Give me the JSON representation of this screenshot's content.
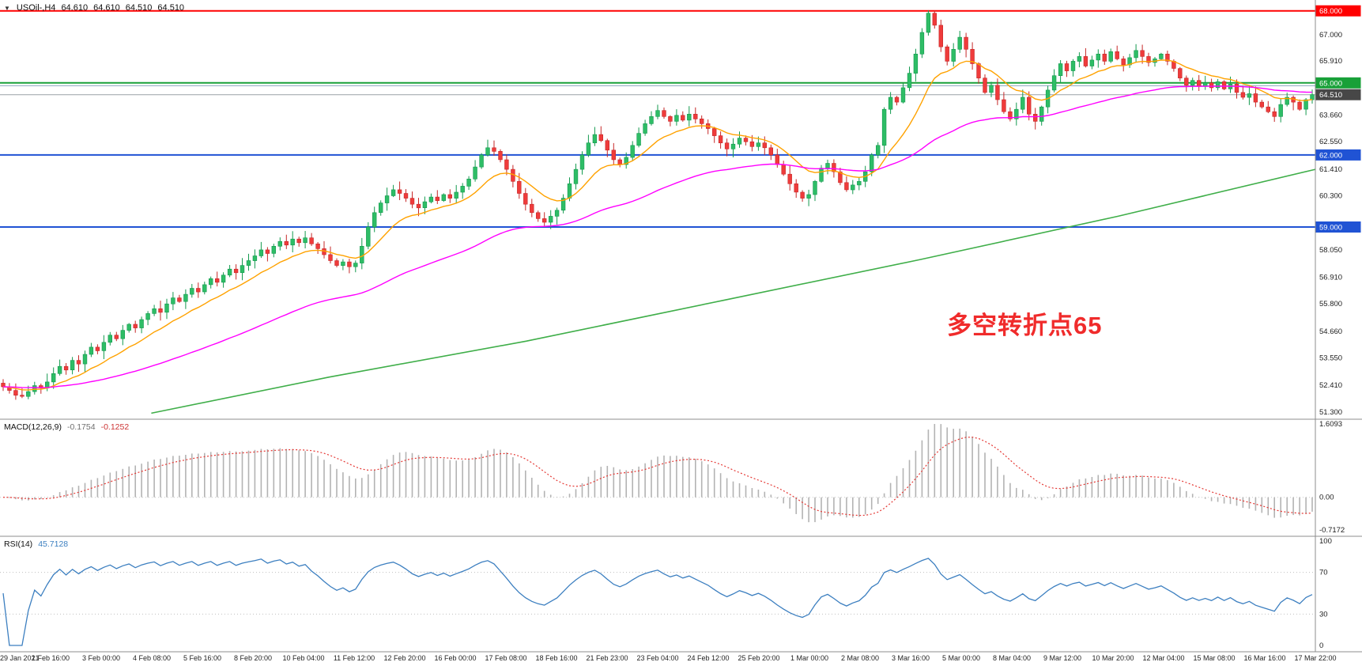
{
  "header": {
    "collapse_icon": "▼",
    "symbol_period": "USOil-,H4",
    "ohlc": {
      "open": "64.610",
      "high": "64.610",
      "low": "64.510",
      "close": "64.510"
    }
  },
  "annotation": {
    "text": "多空转折点65",
    "color": "#f02b2b"
  },
  "time_axis": {
    "labels": [
      "29 Jan 2021",
      "1 Feb 16:00",
      "3 Feb 00:00",
      "4 Feb 08:00",
      "5 Feb 16:00",
      "8 Feb 20:00",
      "10 Feb 04:00",
      "11 Feb 12:00",
      "12 Feb 20:00",
      "16 Feb 00:00",
      "17 Feb 08:00",
      "18 Feb 16:00",
      "21 Feb 23:00",
      "23 Feb 04:00",
      "24 Feb 12:00",
      "25 Feb 20:00",
      "1 Mar 00:00",
      "2 Mar 08:00",
      "3 Mar 16:00",
      "5 Mar 00:00",
      "8 Mar 04:00",
      "9 Mar 12:00",
      "10 Mar 20:00",
      "12 Mar 04:00",
      "15 Mar 08:00",
      "16 Mar 16:00",
      "17 Mar 22:00"
    ]
  },
  "chart_data": [
    {
      "id": "price",
      "type": "candlestick",
      "symbol": "USOil-",
      "period": "H4",
      "ylim": [
        51.0,
        68.45
      ],
      "axis_ticks": [
        "67.000",
        "65.910",
        "63.660",
        "62.550",
        "61.410",
        "60.300",
        "58.050",
        "56.910",
        "55.800",
        "54.660",
        "53.550",
        "52.410",
        "51.300"
      ],
      "up_color": "#2ebd66",
      "up_edge": "#139a4e",
      "down_color": "#ef3b3b",
      "down_edge": "#c62828",
      "hlines": [
        {
          "price": 68.0,
          "label": "68.000",
          "color": "#ff0000",
          "width": 2
        },
        {
          "price": 65.0,
          "label": "65.000",
          "color": "#18a038",
          "width": 2
        },
        {
          "price": 64.88,
          "label": null,
          "color": "#8ca6bf",
          "width": 1
        },
        {
          "price": 62.0,
          "label": "62.000",
          "color": "#2053d4",
          "width": 2
        },
        {
          "price": 59.0,
          "label": "59.000",
          "color": "#2053d4",
          "width": 2
        }
      ],
      "price_marker": {
        "price": 64.51,
        "label": "64.510",
        "line_color": "#9aa0a6",
        "badge_bg": "#474747"
      },
      "moving_averages": [
        {
          "name": "fast-ma",
          "method": "ema",
          "period": 12,
          "color": "#ffa200"
        },
        {
          "name": "mid-ma",
          "method": "ema",
          "period": 55,
          "color": "#ff00ff"
        },
        {
          "name": "long-ma",
          "method": "anchors",
          "color": "#3fae49",
          "points": [
            [
              0.115,
              51.25
            ],
            [
              0.25,
              52.75
            ],
            [
              0.4,
              54.25
            ],
            [
              0.55,
              55.95
            ],
            [
              0.7,
              57.65
            ],
            [
              0.85,
              59.45
            ],
            [
              1.0,
              61.4
            ]
          ]
        }
      ],
      "closes": [
        52.35,
        52.2,
        52.0,
        51.95,
        52.15,
        52.4,
        52.3,
        52.55,
        52.9,
        53.2,
        53.05,
        53.45,
        53.3,
        53.7,
        54.0,
        53.85,
        54.2,
        54.5,
        54.35,
        54.7,
        54.95,
        54.8,
        55.15,
        55.4,
        55.6,
        55.45,
        55.8,
        56.05,
        55.9,
        56.2,
        56.45,
        56.3,
        56.6,
        56.85,
        56.7,
        57.0,
        57.25,
        57.1,
        57.4,
        57.6,
        57.8,
        58.05,
        57.9,
        58.2,
        58.4,
        58.25,
        58.5,
        58.35,
        58.55,
        58.3,
        58.1,
        57.85,
        57.6,
        57.4,
        57.55,
        57.35,
        57.5,
        58.2,
        59.0,
        59.6,
        60.0,
        60.3,
        60.55,
        60.4,
        60.2,
        59.95,
        59.8,
        60.05,
        60.25,
        60.1,
        60.35,
        60.2,
        60.45,
        60.7,
        61.0,
        61.5,
        62.0,
        62.3,
        62.15,
        61.8,
        61.4,
        60.9,
        60.4,
        59.95,
        59.6,
        59.35,
        59.2,
        59.45,
        59.7,
        60.2,
        60.8,
        61.4,
        62.0,
        62.5,
        62.85,
        62.6,
        62.2,
        61.8,
        61.6,
        61.9,
        62.4,
        62.9,
        63.3,
        63.6,
        63.85,
        63.6,
        63.4,
        63.65,
        63.45,
        63.7,
        63.5,
        63.3,
        63.1,
        62.8,
        62.5,
        62.25,
        62.45,
        62.7,
        62.55,
        62.35,
        62.5,
        62.3,
        62.0,
        61.6,
        61.2,
        60.8,
        60.45,
        60.2,
        60.35,
        60.9,
        61.45,
        61.65,
        61.3,
        60.85,
        60.55,
        60.75,
        60.9,
        61.3,
        62.0,
        62.4,
        63.9,
        64.4,
        64.2,
        64.8,
        65.4,
        66.2,
        67.1,
        67.9,
        67.4,
        66.5,
        65.9,
        66.4,
        66.9,
        66.4,
        65.8,
        65.2,
        64.6,
        64.9,
        64.3,
        63.8,
        63.5,
        63.9,
        64.4,
        63.7,
        63.4,
        64.0,
        64.7,
        65.3,
        65.8,
        65.5,
        65.9,
        66.1,
        65.7,
        65.95,
        66.2,
        65.9,
        66.3,
        66.0,
        65.75,
        66.05,
        66.35,
        66.1,
        65.85,
        66.0,
        66.2,
        65.9,
        65.6,
        65.2,
        64.9,
        65.1,
        64.85,
        65.0,
        64.8,
        65.05,
        64.75,
        64.95,
        64.6,
        64.4,
        64.55,
        64.2,
        64.0,
        63.8,
        63.6,
        64.1,
        64.4,
        64.2,
        63.9,
        64.3,
        64.51
      ]
    },
    {
      "id": "macd",
      "type": "bar+line",
      "name": "MACD(12,26,9)",
      "value_main": "-0.1754",
      "value_signal": "-0.1252",
      "ylim": [
        -0.7172,
        1.6093
      ],
      "axis_ticks": [
        "1.6093",
        "0.00",
        "-0.7172"
      ],
      "histogram_color": "#b3b3b3",
      "signal_color": "#e53935",
      "signal_style": "dotted"
    },
    {
      "id": "rsi",
      "type": "line",
      "name": "RSI(14)",
      "value": "45.7128",
      "ylim": [
        0,
        100
      ],
      "levels": [
        70,
        30
      ],
      "axis_ticks": [
        "100",
        "70",
        "30",
        "0"
      ],
      "line_color": "#3c7fc0"
    }
  ]
}
